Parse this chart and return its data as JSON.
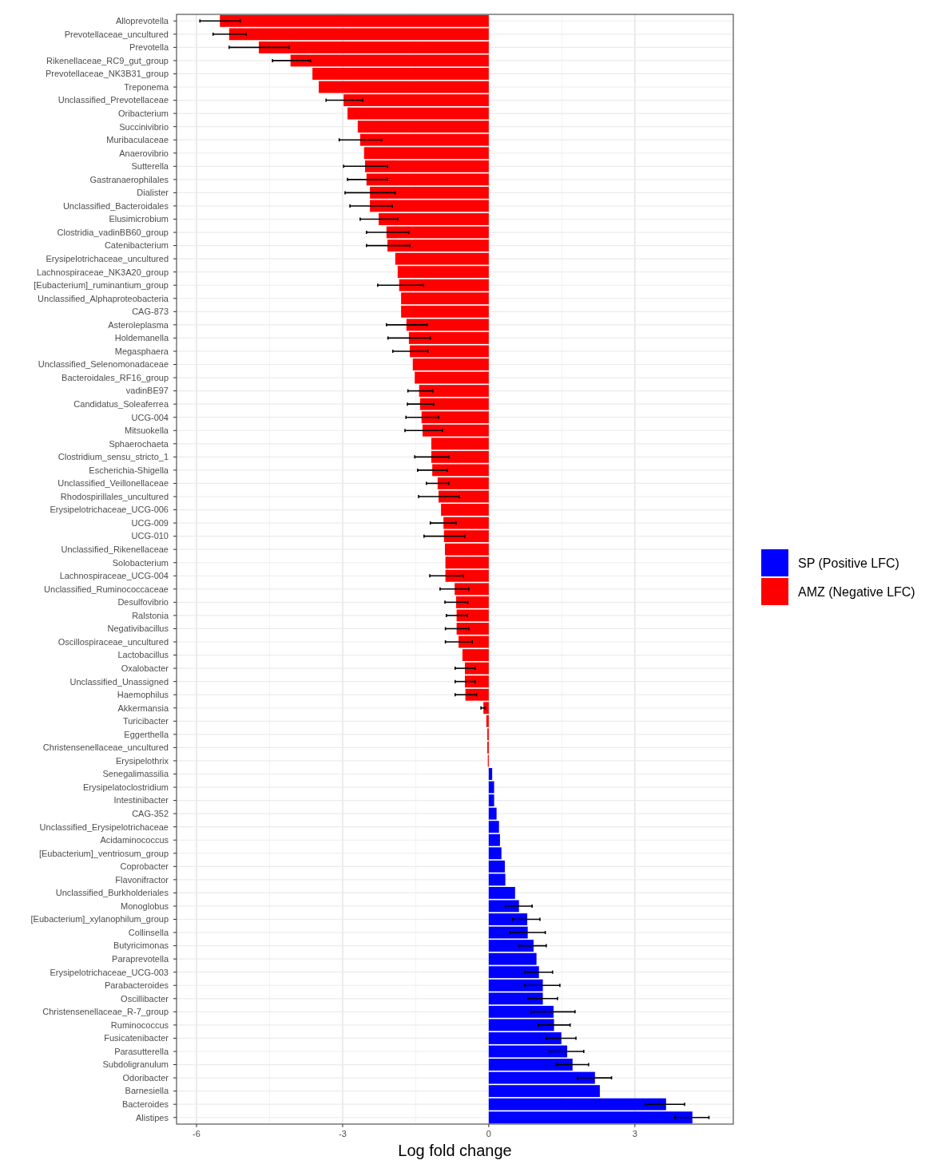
{
  "chart_data": {
    "type": "bar",
    "orientation": "horizontal",
    "xlabel": "Log fold change",
    "xlim": [
      -6.41,
      5.02
    ],
    "xticks": [
      -6,
      -3,
      0,
      3
    ],
    "grid": true,
    "legend": "right",
    "categories": [
      "Alloprevotella",
      "Prevotellaceae_uncultured",
      "Prevotella",
      "Rikenellaceae_RC9_gut_group",
      "Prevotellaceae_NK3B31_group",
      "Treponema",
      "Unclassified_Prevotellaceae",
      "Oribacterium",
      "Succinivibrio",
      "Muribaculaceae",
      "Anaerovibrio",
      "Sutterella",
      "Gastranaerophilales",
      "Dialister",
      "Unclassified_Bacteroidales",
      "Elusimicrobium",
      "Clostridia_vadinBB60_group",
      "Catenibacterium",
      "Erysipelotrichaceae_uncultured",
      "Lachnospiraceae_NK3A20_group",
      "[Eubacterium]_ruminantium_group",
      "Unclassified_Alphaproteobacteria",
      "CAG-873",
      "Asteroleplasma",
      "Holdemanella",
      "Megasphaera",
      "Unclassified_Selenomonadaceae",
      "Bacteroidales_RF16_group",
      "vadinBE97",
      "Candidatus_Soleaferrea",
      "UCG-004",
      "Mitsuokella",
      "Sphaerochaeta",
      "Clostridium_sensu_stricto_1",
      "Escherichia-Shigella",
      "Unclassified_Veillonellaceae",
      "Rhodospirillales_uncultured",
      "Erysipelotrichaceae_UCG-006",
      "UCG-009",
      "UCG-010",
      "Unclassified_Rikenellaceae",
      "Solobacterium",
      "Lachnospiraceae_UCG-004",
      "Unclassified_Ruminococcaceae",
      "Desulfovibrio",
      "Ralstonia",
      "Negativibacillus",
      "Oscillospiraceae_uncultured",
      "Lactobacillus",
      "Oxalobacter",
      "Unclassified_Unassigned",
      "Haemophilus",
      "Akkermansia",
      "Turicibacter",
      "Eggerthella",
      "Christensenellaceae_uncultured",
      "Erysipelothrix",
      "Senegalimassilia",
      "Erysipelatoclostridium",
      "Intestinibacter",
      "CAG-352",
      "Unclassified_Erysipelotrichaceae",
      "Acidaminococcus",
      "[Eubacterium]_ventriosum_group",
      "Coprobacter",
      "Flavonifractor",
      "Unclassified_Burkholderiales",
      "Monoglobus",
      "[Eubacterium]_xylanophilum_group",
      "Collinsella",
      "Butyricimonas",
      "Paraprevotella",
      "Erysipelotrichaceae_UCG-003",
      "Parabacteroides",
      "Oscillibacter",
      "Christensenellaceae_R-7_group",
      "Ruminococcus",
      "Fusicatenibacter",
      "Parasutterella",
      "Subdoligranulum",
      "Odoribacter",
      "Barnesiella",
      "Bacteroides",
      "Alistipes"
    ],
    "series": [
      {
        "name": "SP (Positive LFC)",
        "color": "#0000ff",
        "values": [
          null,
          null,
          null,
          null,
          null,
          null,
          null,
          null,
          null,
          null,
          null,
          null,
          null,
          null,
          null,
          null,
          null,
          null,
          null,
          null,
          null,
          null,
          null,
          null,
          null,
          null,
          null,
          null,
          null,
          null,
          null,
          null,
          null,
          null,
          null,
          null,
          null,
          null,
          null,
          null,
          null,
          null,
          null,
          null,
          null,
          null,
          null,
          null,
          null,
          null,
          null,
          null,
          null,
          null,
          null,
          null,
          null,
          0.07,
          0.11,
          0.11,
          0.16,
          0.21,
          0.23,
          0.26,
          0.33,
          0.34,
          0.54,
          0.62,
          0.79,
          0.8,
          0.92,
          0.98,
          1.03,
          1.11,
          1.11,
          1.33,
          1.34,
          1.49,
          1.61,
          1.72,
          2.18,
          2.28,
          3.64,
          4.18
        ],
        "errors": [
          null,
          null,
          null,
          null,
          null,
          null,
          null,
          null,
          null,
          null,
          null,
          null,
          null,
          null,
          null,
          null,
          null,
          null,
          null,
          null,
          null,
          null,
          null,
          null,
          null,
          null,
          null,
          null,
          null,
          null,
          null,
          null,
          null,
          null,
          null,
          null,
          null,
          null,
          null,
          null,
          null,
          null,
          null,
          null,
          null,
          null,
          null,
          null,
          null,
          null,
          null,
          null,
          null,
          null,
          null,
          null,
          null,
          null,
          null,
          null,
          null,
          null,
          null,
          null,
          null,
          null,
          null,
          [
            0.34,
            0.89
          ],
          [
            0.49,
            1.05
          ],
          [
            0.44,
            1.16
          ],
          [
            0.62,
            1.18
          ],
          null,
          [
            0.74,
            1.31
          ],
          [
            0.74,
            1.46
          ],
          [
            0.8,
            1.41
          ],
          [
            0.87,
            1.77
          ],
          [
            1.02,
            1.67
          ],
          [
            1.18,
            1.79
          ],
          [
            1.25,
            1.95
          ],
          [
            1.39,
            2.05
          ],
          [
            1.82,
            2.52
          ],
          null,
          [
            3.21,
            4.02
          ],
          [
            3.82,
            4.52
          ]
        ]
      },
      {
        "name": "AMZ (Negative LFC)",
        "color": "#ff0000",
        "values": [
          -5.52,
          -5.33,
          -4.72,
          -4.07,
          -3.62,
          -3.49,
          -2.98,
          -2.9,
          -2.69,
          -2.64,
          -2.56,
          -2.54,
          -2.51,
          -2.44,
          -2.44,
          -2.26,
          -2.1,
          -2.08,
          -1.92,
          -1.87,
          -1.84,
          -1.8,
          -1.8,
          -1.69,
          -1.64,
          -1.62,
          -1.56,
          -1.52,
          -1.43,
          -1.41,
          -1.38,
          -1.36,
          -1.18,
          -1.18,
          -1.16,
          -1.05,
          -1.03,
          -0.98,
          -0.93,
          -0.92,
          -0.9,
          -0.89,
          -0.89,
          -0.7,
          -0.67,
          -0.66,
          -0.66,
          -0.62,
          -0.54,
          -0.49,
          -0.49,
          -0.48,
          -0.11,
          -0.05,
          -0.03,
          -0.03,
          -0.02,
          null,
          null,
          null,
          null,
          null,
          null,
          null,
          null,
          null,
          null,
          null,
          null,
          null,
          null,
          null,
          null,
          null,
          null,
          null,
          null,
          null,
          null,
          null,
          null,
          null,
          null,
          null
        ],
        "errors": [
          [
            -5.93,
            -5.1
          ],
          [
            -5.66,
            -4.98
          ],
          [
            -5.33,
            -4.1
          ],
          [
            -4.44,
            -3.66
          ],
          null,
          null,
          [
            -3.34,
            -2.59
          ],
          null,
          null,
          [
            -3.07,
            -2.2
          ],
          null,
          [
            -2.98,
            -2.08
          ],
          [
            -2.9,
            -2.08
          ],
          [
            -2.95,
            -1.92
          ],
          [
            -2.85,
            -1.98
          ],
          [
            -2.64,
            -1.87
          ],
          [
            -2.51,
            -1.64
          ],
          [
            -2.51,
            -1.62
          ],
          null,
          null,
          [
            -2.28,
            -1.34
          ],
          null,
          null,
          [
            -2.1,
            -1.26
          ],
          [
            -2.07,
            -1.2
          ],
          [
            -1.97,
            -1.25
          ],
          null,
          null,
          [
            -1.66,
            -1.15
          ],
          [
            -1.67,
            -1.13
          ],
          [
            -1.7,
            -1.03
          ],
          [
            -1.72,
            -0.95
          ],
          null,
          [
            -1.52,
            -0.82
          ],
          [
            -1.46,
            -0.85
          ],
          [
            -1.28,
            -0.82
          ],
          [
            -1.44,
            -0.61
          ],
          null,
          [
            -1.2,
            -0.67
          ],
          [
            -1.33,
            -0.49
          ],
          null,
          null,
          [
            -1.21,
            -0.52
          ],
          [
            -1.0,
            -0.41
          ],
          [
            -0.9,
            -0.43
          ],
          [
            -0.87,
            -0.44
          ],
          [
            -0.89,
            -0.41
          ],
          [
            -0.89,
            -0.34
          ],
          null,
          [
            -0.69,
            -0.28
          ],
          [
            -0.69,
            -0.28
          ],
          [
            -0.69,
            -0.25
          ],
          [
            -0.16,
            -0.07
          ],
          null,
          null,
          null,
          null,
          null,
          null,
          null,
          null,
          null,
          null,
          null,
          null,
          null,
          null,
          null,
          null,
          null,
          null,
          null,
          null,
          null,
          null,
          null,
          null,
          null,
          null,
          null,
          null,
          null,
          null,
          null
        ]
      }
    ]
  }
}
